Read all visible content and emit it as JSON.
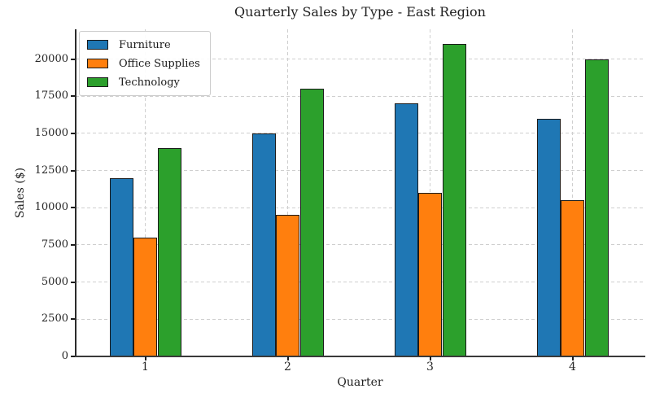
{
  "chart_data": {
    "type": "bar",
    "title": "Quarterly Sales by Type - East Region",
    "xlabel": "Quarter",
    "ylabel": "Sales ($)",
    "categories": [
      "1",
      "2",
      "3",
      "4"
    ],
    "series": [
      {
        "name": "Furniture",
        "color": "#1f77b4",
        "values": [
          12000,
          15000,
          17000,
          16000
        ]
      },
      {
        "name": "Office Supplies",
        "color": "#ff7f0e",
        "values": [
          8000,
          9500,
          11000,
          10500
        ]
      },
      {
        "name": "Technology",
        "color": "#2ca02c",
        "values": [
          14000,
          18000,
          21000,
          20000
        ]
      }
    ],
    "yticks": [
      0,
      2500,
      5000,
      7500,
      10000,
      12500,
      15000,
      17500,
      20000
    ],
    "ylim": [
      0,
      22000
    ],
    "grid": true,
    "grid_color": "#cfcfcf",
    "bar_edge_color": "#1a1a1a",
    "legend_position": "upper left"
  }
}
